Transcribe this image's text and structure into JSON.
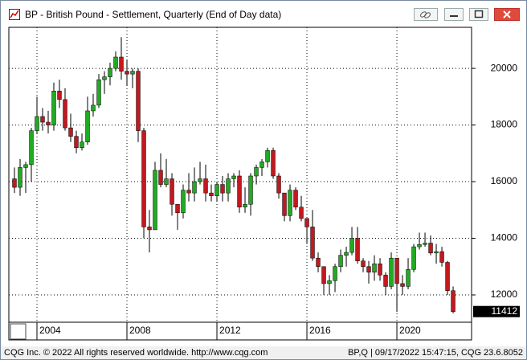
{
  "title": "BP - British Pound - Settlement, Quarterly (End of Day data)",
  "footer": {
    "left": "CQG Inc. © 2022 All rights reserved worldwide. http://www.cqg.com",
    "right": "BP,Q | 09/17/2022 15:47:15, CQG 23.6.8052"
  },
  "chart_data": {
    "type": "candlestick",
    "up_color": "#22aa22",
    "down_color": "#c0191f",
    "grid": true,
    "xlim": [
      2002.75,
      2023.32
    ],
    "xticks": [
      2004,
      2008,
      2012,
      2016,
      2020
    ],
    "ylim": [
      11035,
      21450
    ],
    "yticks": [
      12000,
      14000,
      16000,
      18000,
      20000
    ],
    "last_price": 11412,
    "x": [
      2003,
      2003.25,
      2003.5,
      2003.75,
      2004,
      2004.25,
      2004.5,
      2004.75,
      2005,
      2005.25,
      2005.5,
      2005.75,
      2006,
      2006.25,
      2006.5,
      2006.75,
      2007,
      2007.25,
      2007.5,
      2007.75,
      2008,
      2008.25,
      2008.5,
      2008.75,
      2009,
      2009.25,
      2009.5,
      2009.75,
      2010,
      2010.25,
      2010.5,
      2010.75,
      2011,
      2011.25,
      2011.5,
      2011.75,
      2012,
      2012.25,
      2012.5,
      2012.75,
      2013,
      2013.25,
      2013.5,
      2013.75,
      2014,
      2014.25,
      2014.5,
      2014.75,
      2015,
      2015.25,
      2015.5,
      2015.75,
      2016,
      2016.25,
      2016.5,
      2016.75,
      2017,
      2017.25,
      2017.5,
      2017.75,
      2018,
      2018.25,
      2018.5,
      2018.75,
      2019,
      2019.25,
      2019.5,
      2019.75,
      2020,
      2020.25,
      2020.5,
      2020.75,
      2021,
      2021.25,
      2021.5,
      2021.75,
      2022,
      2022.25,
      2022.5
    ],
    "open": [
      16100,
      15800,
      16500,
      16600,
      17800,
      18300,
      18100,
      18000,
      19200,
      18900,
      17900,
      17600,
      17200,
      17400,
      18500,
      18700,
      19600,
      19700,
      20000,
      20400,
      19900,
      19800,
      19900,
      17800,
      14400,
      14300,
      16400,
      15900,
      16100,
      15200,
      14900,
      15700,
      15600,
      16000,
      16100,
      15600,
      15500,
      15900,
      15600,
      16100,
      16200,
      15100,
      15200,
      16200,
      16500,
      16700,
      17100,
      16200,
      15600,
      14800,
      15700,
      15100,
      14700,
      14400,
      13300,
      13000,
      12400,
      12500,
      13000,
      13400,
      13500,
      14000,
      13200,
      13000,
      12800,
      13100,
      12700,
      12300,
      13300,
      12400,
      12300,
      12900,
      13700,
      13780,
      13830,
      13480,
      13530,
      13150,
      12150
    ],
    "high": [
      16500,
      16800,
      16700,
      17900,
      19000,
      18600,
      18500,
      19500,
      19600,
      19300,
      18400,
      17800,
      17700,
      19000,
      19100,
      19800,
      19900,
      20200,
      20600,
      21100,
      20300,
      20000,
      20000,
      17900,
      15000,
      16700,
      17000,
      16800,
      16300,
      15200,
      15900,
      16300,
      16500,
      16700,
      16600,
      15900,
      16000,
      16200,
      16300,
      16300,
      16400,
      15800,
      16300,
      16600,
      16800,
      17200,
      17200,
      16300,
      15600,
      15900,
      15800,
      15500,
      14700,
      15000,
      13500,
      13000,
      12700,
      13100,
      13600,
      13700,
      14400,
      14400,
      13300,
      13200,
      13400,
      13300,
      12800,
      13500,
      13300,
      12700,
      13300,
      13800,
      14200,
      14200,
      14100,
      13800,
      13700,
      13200,
      12300
    ],
    "low": [
      15600,
      15500,
      15600,
      16000,
      17700,
      17800,
      17700,
      17800,
      18600,
      17800,
      17400,
      17000,
      17100,
      17300,
      18300,
      18600,
      19100,
      19400,
      19900,
      19600,
      19400,
      19300,
      17400,
      14000,
      13500,
      14300,
      15800,
      15800,
      14800,
      14300,
      14700,
      15300,
      15300,
      15900,
      15300,
      15300,
      15300,
      15300,
      15300,
      15800,
      14900,
      14900,
      14800,
      15900,
      16200,
      16500,
      16100,
      15400,
      14600,
      14600,
      15000,
      14600,
      13800,
      13200,
      12800,
      12000,
      12000,
      12100,
      12800,
      13000,
      13400,
      13100,
      12800,
      12400,
      12500,
      12500,
      12000,
      12200,
      11400,
      12000,
      12200,
      12800,
      13600,
      13700,
      13400,
      13100,
      13000,
      12000,
      11350
    ],
    "close": [
      15800,
      16500,
      16600,
      17800,
      18300,
      18100,
      18000,
      19200,
      18900,
      17900,
      17600,
      17200,
      17400,
      18500,
      18700,
      19600,
      19700,
      20000,
      20400,
      19900,
      19800,
      19900,
      17800,
      14400,
      14300,
      16400,
      15900,
      16100,
      15200,
      14900,
      15700,
      15600,
      16000,
      16100,
      15600,
      15500,
      15900,
      15600,
      16100,
      16200,
      15100,
      15200,
      16200,
      16500,
      16700,
      17100,
      16200,
      15600,
      14800,
      15700,
      15100,
      14700,
      14400,
      13300,
      13000,
      12400,
      12500,
      13000,
      13400,
      13500,
      14000,
      13200,
      13000,
      12800,
      13100,
      12700,
      12300,
      13300,
      12400,
      12300,
      12900,
      13700,
      13780,
      13830,
      13480,
      13530,
      13150,
      12150,
      11412
    ]
  }
}
